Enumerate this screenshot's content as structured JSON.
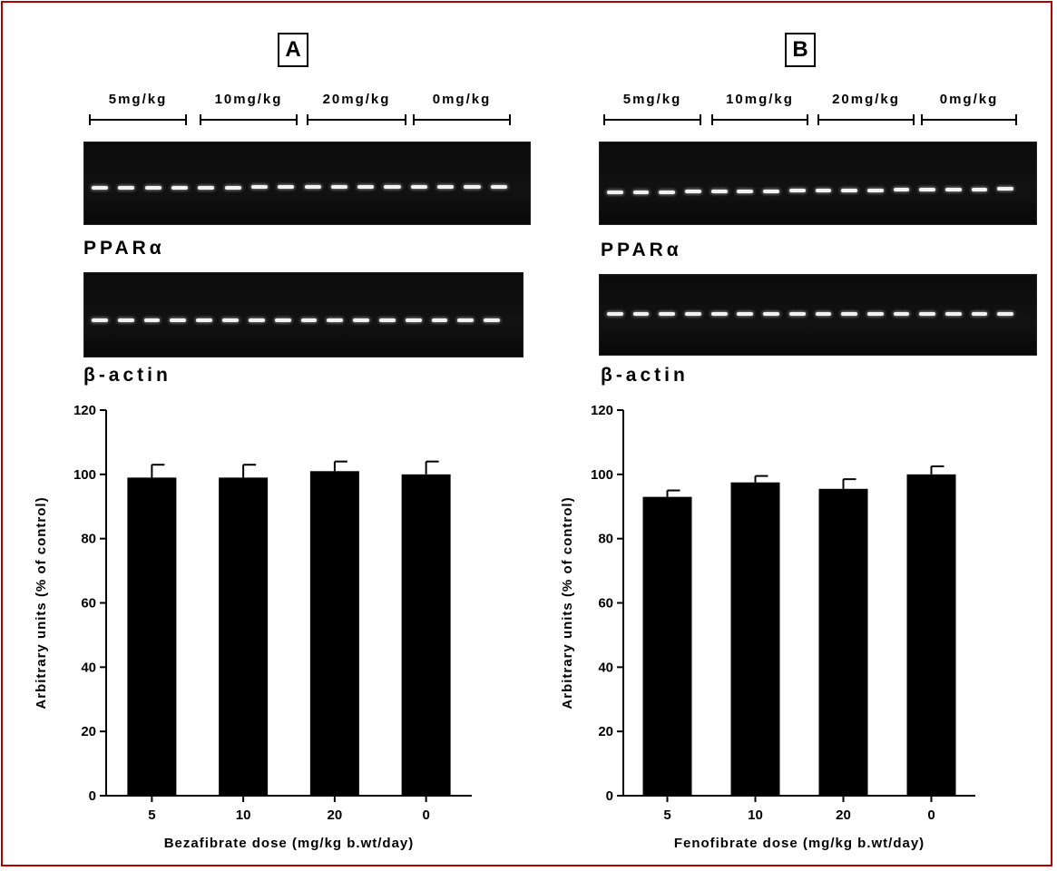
{
  "panels": [
    {
      "letter": "A",
      "dose_labels": [
        "5mg/kg",
        "10mg/kg",
        "20mg/kg",
        "0mg/kg"
      ],
      "gel_labels": [
        "PPARα",
        "β-actin"
      ]
    },
    {
      "letter": "B",
      "dose_labels": [
        "5mg/kg",
        "10mg/kg",
        "20mg/kg",
        "0mg/kg"
      ],
      "gel_labels": [
        "PPARα",
        "β-actin"
      ]
    }
  ],
  "chart_data": [
    {
      "type": "bar",
      "categories": [
        "5",
        "10",
        "20",
        "0"
      ],
      "values": [
        99,
        99,
        101,
        100
      ],
      "errors": [
        4,
        4,
        3,
        4
      ],
      "ylim": [
        0,
        120
      ],
      "yticks": [
        0,
        20,
        40,
        60,
        80,
        100,
        120
      ],
      "ylabel": "Arbitrary units (% of control)",
      "xlabel": "Bezafibrate dose (mg/kg b.wt/day)",
      "bar_color": "#000000",
      "grid": false
    },
    {
      "type": "bar",
      "categories": [
        "5",
        "10",
        "20",
        "0"
      ],
      "values": [
        93,
        97.5,
        95.5,
        100
      ],
      "errors": [
        2,
        2,
        3,
        2.5
      ],
      "ylim": [
        0,
        120
      ],
      "yticks": [
        0,
        20,
        40,
        60,
        80,
        100,
        120
      ],
      "ylabel": "Arbitrary units (% of control)",
      "xlabel": "Fenofibrate dose (mg/kg b.wt/day)",
      "bar_color": "#000000",
      "grid": false
    }
  ]
}
